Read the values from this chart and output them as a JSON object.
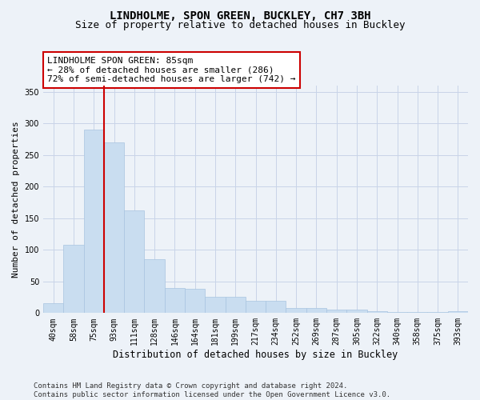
{
  "title1": "LINDHOLME, SPON GREEN, BUCKLEY, CH7 3BH",
  "title2": "Size of property relative to detached houses in Buckley",
  "xlabel": "Distribution of detached houses by size in Buckley",
  "ylabel": "Number of detached properties",
  "categories": [
    "40sqm",
    "58sqm",
    "75sqm",
    "93sqm",
    "111sqm",
    "128sqm",
    "146sqm",
    "164sqm",
    "181sqm",
    "199sqm",
    "217sqm",
    "234sqm",
    "252sqm",
    "269sqm",
    "287sqm",
    "305sqm",
    "322sqm",
    "340sqm",
    "358sqm",
    "375sqm",
    "393sqm"
  ],
  "bar_heights": [
    15,
    108,
    290,
    270,
    163,
    85,
    40,
    38,
    26,
    26,
    19,
    19,
    8,
    8,
    5,
    5,
    3,
    2,
    2,
    2,
    3
  ],
  "bar_color": "#c9ddf0",
  "bar_edgecolor": "#a8c4e0",
  "property_line_x": 2.5,
  "annotation_text": "LINDHOLME SPON GREEN: 85sqm\n← 28% of detached houses are smaller (286)\n72% of semi-detached houses are larger (742) →",
  "annotation_box_color": "white",
  "annotation_box_edgecolor": "#cc0000",
  "vline_color": "#cc0000",
  "ylim": [
    0,
    360
  ],
  "yticks": [
    0,
    50,
    100,
    150,
    200,
    250,
    300,
    350
  ],
  "grid_color": "#c8d4e8",
  "background_color": "#edf2f8",
  "footer_text": "Contains HM Land Registry data © Crown copyright and database right 2024.\nContains public sector information licensed under the Open Government Licence v3.0.",
  "title1_fontsize": 10,
  "title2_fontsize": 9,
  "xlabel_fontsize": 8.5,
  "ylabel_fontsize": 8,
  "tick_fontsize": 7,
  "annot_fontsize": 8,
  "footer_fontsize": 6.5
}
